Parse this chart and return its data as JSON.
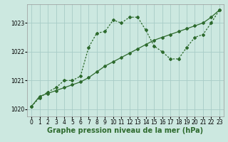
{
  "hours": [
    0,
    1,
    2,
    3,
    4,
    5,
    6,
    7,
    8,
    9,
    10,
    11,
    12,
    13,
    14,
    15,
    16,
    17,
    18,
    19,
    20,
    21,
    22,
    23
  ],
  "line1": [
    1020.1,
    1020.4,
    1020.6,
    1020.75,
    1021.0,
    1021.0,
    1021.15,
    1022.15,
    1022.65,
    1022.7,
    1023.1,
    1023.0,
    1023.2,
    1023.2,
    1022.75,
    1022.2,
    1022.0,
    1021.75,
    1021.75,
    1022.15,
    1022.5,
    1022.6,
    1023.0,
    1023.45
  ],
  "line2": [
    1020.1,
    1020.45,
    1020.55,
    1020.65,
    1020.75,
    1020.85,
    1020.95,
    1021.1,
    1021.3,
    1021.5,
    1021.65,
    1021.8,
    1021.95,
    1022.1,
    1022.25,
    1022.4,
    1022.5,
    1022.6,
    1022.7,
    1022.8,
    1022.9,
    1023.0,
    1023.2,
    1023.45
  ],
  "line_color": "#2d6a2d",
  "bg_color": "#cce8e0",
  "grid_color": "#a8ccc6",
  "xlabel": "Graphe pression niveau de la mer (hPa)",
  "xlabel_fontsize": 7,
  "ylim": [
    1019.75,
    1023.65
  ],
  "yticks": [
    1020,
    1021,
    1022,
    1023
  ],
  "xticks": [
    0,
    1,
    2,
    3,
    4,
    5,
    6,
    7,
    8,
    9,
    10,
    11,
    12,
    13,
    14,
    15,
    16,
    17,
    18,
    19,
    20,
    21,
    22,
    23
  ],
  "tick_fontsize": 5.5,
  "marker_size": 2.0,
  "line_width": 0.9
}
